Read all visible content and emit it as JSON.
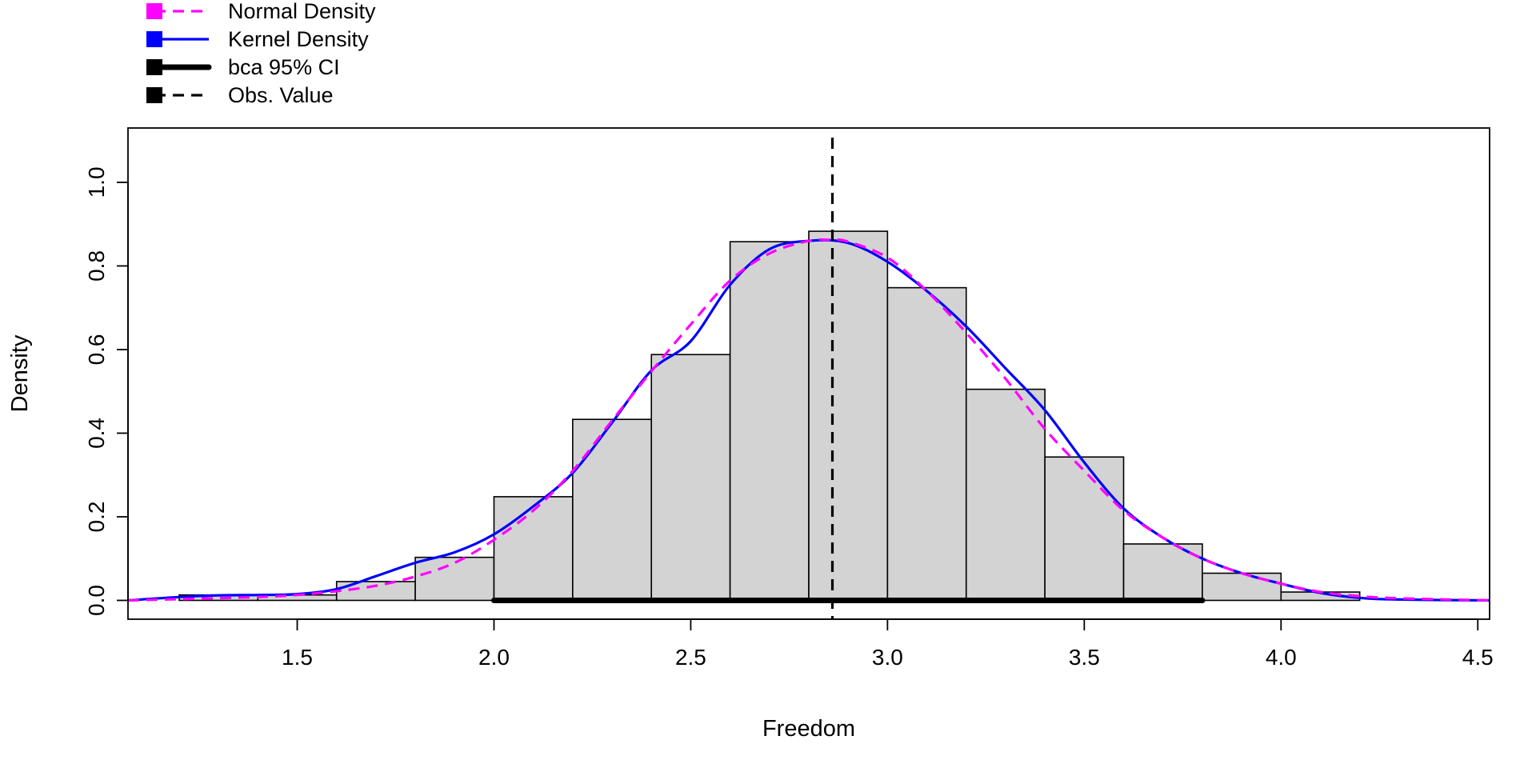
{
  "chart_data": {
    "type": "bar",
    "title": "",
    "xlabel": "Freedom",
    "ylabel": "Density",
    "xlim": [
      1.07,
      4.53
    ],
    "ylim": [
      -0.045,
      1.13
    ],
    "x_ticks": [
      1.5,
      2.0,
      2.5,
      3.0,
      3.5,
      4.0,
      4.5
    ],
    "x_tick_labels": [
      "1.5",
      "2.0",
      "2.5",
      "3.0",
      "3.5",
      "4.0",
      "4.5"
    ],
    "y_ticks": [
      0.0,
      0.2,
      0.4,
      0.6,
      0.8,
      1.0
    ],
    "y_tick_labels": [
      "0.0",
      "0.2",
      "0.4",
      "0.6",
      "0.8",
      "1.0"
    ],
    "grid": false,
    "legend_position": "top-left, outside plot",
    "histogram": {
      "bin_edges": [
        1.2,
        1.4,
        1.6,
        1.8,
        2.0,
        2.2,
        2.4,
        2.6,
        2.8,
        3.0,
        3.2,
        3.4,
        3.6,
        3.8,
        4.0,
        4.2
      ],
      "densities": [
        0.013,
        0.013,
        0.045,
        0.103,
        0.248,
        0.433,
        0.588,
        0.858,
        0.883,
        0.748,
        0.505,
        0.343,
        0.135,
        0.065,
        0.02
      ],
      "fill_color": "#d3d3d3",
      "edge_color": "#000000"
    },
    "series": [
      {
        "name": "Normal Density",
        "color": "#ff00ff",
        "line_style": "dashed",
        "x": [
          1.07,
          1.2,
          1.4,
          1.5,
          1.6,
          1.7,
          1.8,
          1.9,
          2.0,
          2.1,
          2.2,
          2.3,
          2.4,
          2.5,
          2.6,
          2.7,
          2.8,
          2.86,
          2.9,
          3.0,
          3.1,
          3.2,
          3.3,
          3.4,
          3.5,
          3.6,
          3.7,
          3.8,
          3.9,
          4.0,
          4.1,
          4.2,
          4.3,
          4.53
        ],
        "y": [
          0.0,
          0.003,
          0.008,
          0.013,
          0.022,
          0.035,
          0.057,
          0.09,
          0.145,
          0.215,
          0.31,
          0.43,
          0.548,
          0.66,
          0.765,
          0.83,
          0.86,
          0.862,
          0.858,
          0.82,
          0.74,
          0.64,
          0.53,
          0.41,
          0.31,
          0.215,
          0.15,
          0.1,
          0.065,
          0.04,
          0.02,
          0.01,
          0.005,
          0.0
        ]
      },
      {
        "name": "Kernel Density",
        "color": "#0000ff",
        "line_style": "solid",
        "x": [
          1.07,
          1.2,
          1.3,
          1.4,
          1.5,
          1.6,
          1.7,
          1.8,
          1.9,
          2.0,
          2.1,
          2.2,
          2.3,
          2.4,
          2.5,
          2.6,
          2.7,
          2.8,
          2.9,
          3.0,
          3.1,
          3.2,
          3.3,
          3.4,
          3.5,
          3.6,
          3.7,
          3.8,
          3.9,
          4.0,
          4.1,
          4.2,
          4.3,
          4.53
        ],
        "y": [
          0.0,
          0.008,
          0.012,
          0.013,
          0.015,
          0.027,
          0.058,
          0.09,
          0.115,
          0.158,
          0.225,
          0.305,
          0.425,
          0.55,
          0.62,
          0.755,
          0.84,
          0.86,
          0.855,
          0.81,
          0.74,
          0.655,
          0.555,
          0.455,
          0.33,
          0.22,
          0.15,
          0.1,
          0.065,
          0.04,
          0.018,
          0.006,
          0.002,
          0.0
        ]
      }
    ],
    "ci": {
      "name": "bca 95% CI",
      "lower": 2.0,
      "upper": 3.8,
      "color": "#000000"
    },
    "observed": {
      "name": "Obs. Value",
      "value": 2.86,
      "color": "#000000"
    },
    "legend": [
      {
        "label": "Normal Density",
        "color": "#ff00ff",
        "line_style": "dashed"
      },
      {
        "label": "Kernel Density",
        "color": "#0000ff",
        "line_style": "solid"
      },
      {
        "label": "bca 95% CI",
        "color": "#000000",
        "line_style": "thick"
      },
      {
        "label": "Obs. Value",
        "color": "#000000",
        "line_style": "dashed"
      }
    ]
  }
}
